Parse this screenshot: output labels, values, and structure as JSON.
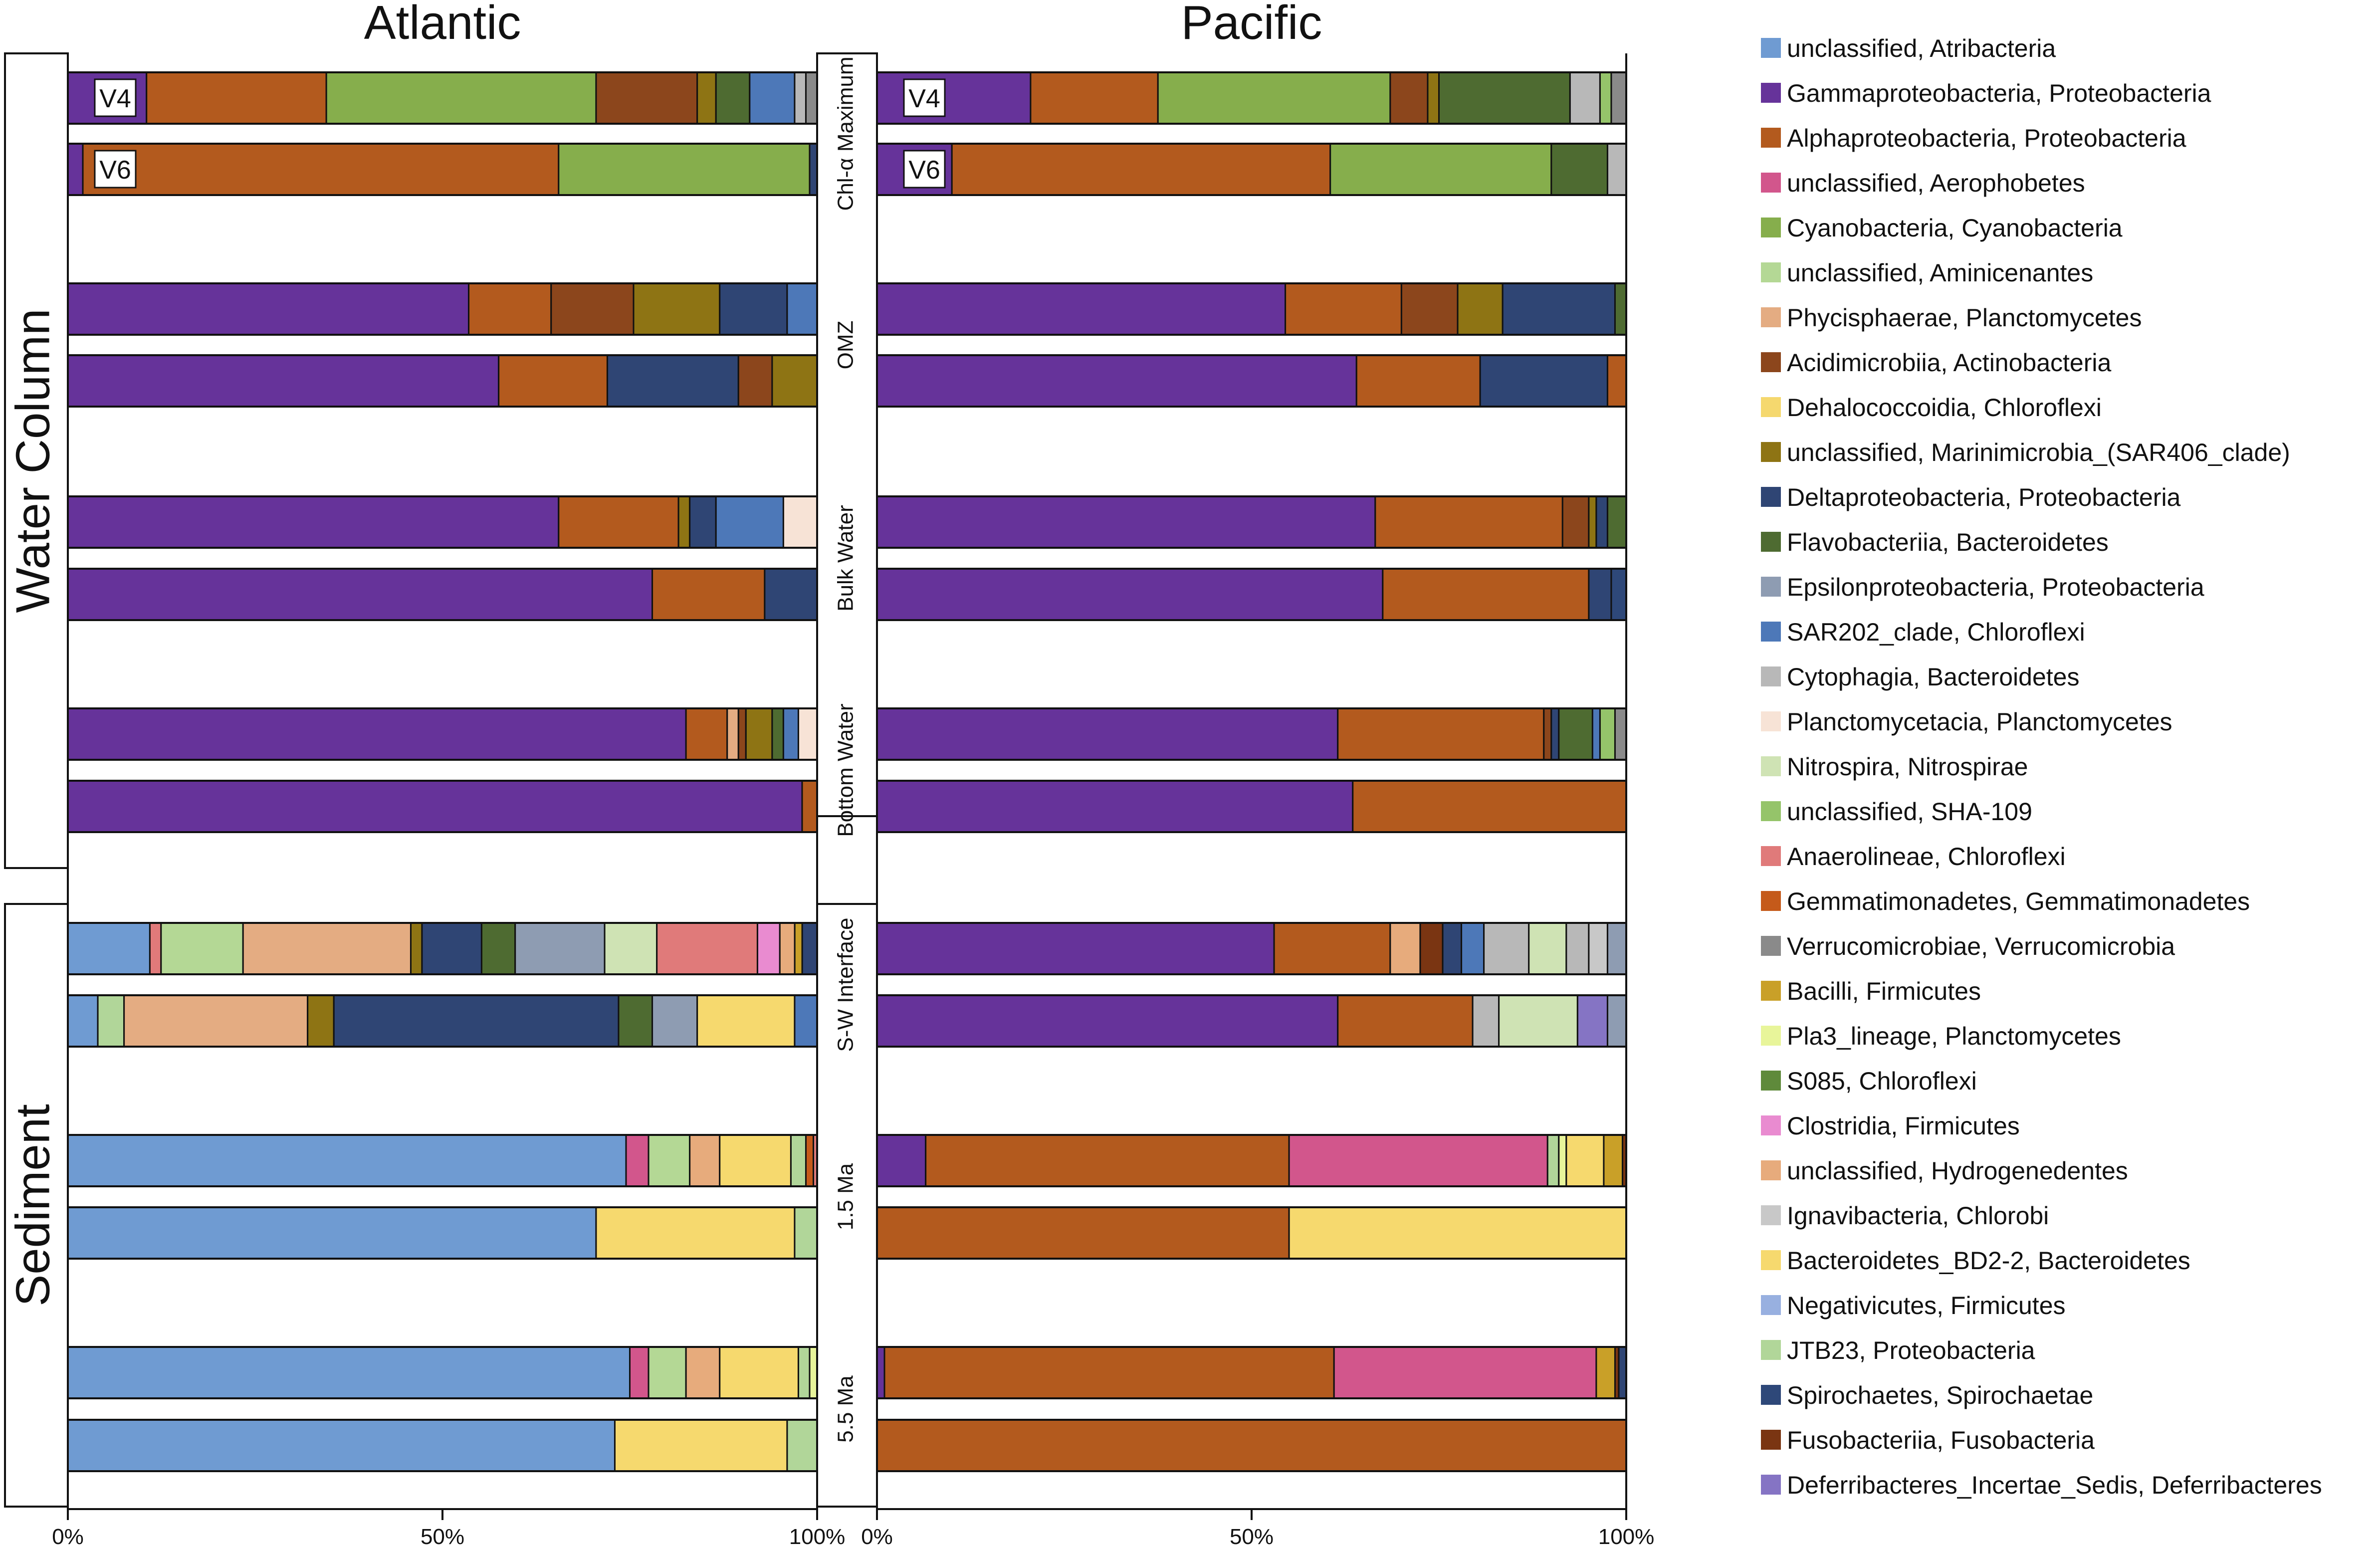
{
  "chart_data": {
    "type": "stacked-bar-horizontal",
    "panels": [
      "Atlantic",
      "Pacific"
    ],
    "groups": [
      {
        "label": "Water Column",
        "rows": [
          "Chl-α Maximum",
          "OMZ",
          "Bulk Water",
          "Bottom Water"
        ]
      },
      {
        "label": "Sediment",
        "rows": [
          "S-W Interface",
          "1.5 Ma",
          "5.5 Ma"
        ]
      }
    ],
    "primers": [
      "V4",
      "V6"
    ],
    "x_ticks": [
      "0%",
      "50%",
      "100%"
    ],
    "legend": [
      {
        "label": "unclassified, Atribacteria",
        "color": "#6f9bd2"
      },
      {
        "label": "Gammaproteobacteria, Proteobacteria",
        "color": "#66339a"
      },
      {
        "label": "Alphaproteobacteria, Proteobacteria",
        "color": "#b35a1e"
      },
      {
        "label": "unclassified, Aerophobetes",
        "color": "#d2568c"
      },
      {
        "label": "Cyanobacteria, Cyanobacteria",
        "color": "#86ae4c"
      },
      {
        "label": "unclassified, Aminicenantes",
        "color": "#b4d895"
      },
      {
        "label": "Phycisphaerae, Planctomycetes",
        "color": "#e4ac82"
      },
      {
        "label": "Acidimicrobiia, Actinobacteria",
        "color": "#8c461c"
      },
      {
        "label": "Dehalococcoidia, Chloroflexi",
        "color": "#f5d86e"
      },
      {
        "label": "unclassified, Marinimicrobia_(SAR406_clade)",
        "color": "#8e7414"
      },
      {
        "label": "Deltaproteobacteria, Proteobacteria",
        "color": "#2f4574"
      },
      {
        "label": "Flavobacteriia, Bacteroidetes",
        "color": "#4e6b31"
      },
      {
        "label": "Epsilonproteobacteria, Proteobacteria",
        "color": "#8e9cb2"
      },
      {
        "label": "SAR202_clade, Chloroflexi",
        "color": "#4d78b8"
      },
      {
        "label": "Cytophagia, Bacteroidetes",
        "color": "#b8b8b8"
      },
      {
        "label": "Planctomycetacia, Planctomycetes",
        "color": "#f7e3d6"
      },
      {
        "label": "Nitrospira, Nitrospirae",
        "color": "#cfe3b4"
      },
      {
        "label": "unclassified, SHA-109",
        "color": "#95c46a"
      },
      {
        "label": "Anaerolineae, Chloroflexi",
        "color": "#e07a7a"
      },
      {
        "label": "Gemmatimonadetes, Gemmatimonadetes",
        "color": "#c55a1a"
      },
      {
        "label": "Verrucomicrobiae, Verrucomicrobia",
        "color": "#8a8a8a"
      },
      {
        "label": "Bacilli, Firmicutes",
        "color": "#c9a028"
      },
      {
        "label": "Pla3_lineage, Planctomycetes",
        "color": "#e8f59a"
      },
      {
        "label": "S085, Chloroflexi",
        "color": "#5f8a3b"
      },
      {
        "label": "Clostridia, Firmicutes",
        "color": "#e98bd0"
      },
      {
        "label": "unclassified, Hydrogenedentes",
        "color": "#e7ab7c"
      },
      {
        "label": "Ignavibacteria, Chlorobi",
        "color": "#c8c8c8"
      },
      {
        "label": "Bacteroidetes_BD2-2, Bacteroidetes",
        "color": "#f6d96e"
      },
      {
        "label": "Negativicutes, Firmicutes",
        "color": "#98b0e0"
      },
      {
        "label": "JTB23, Proteobacteria",
        "color": "#b1d699"
      },
      {
        "label": "Spirochaetes, Spirochaetae",
        "color": "#2e4879"
      },
      {
        "label": "Fusobacteriia, Fusobacteria",
        "color": "#7a3512"
      },
      {
        "label": "Deferribacteres_Incertae_Sedis, Deferribacteres",
        "color": "#8574c4"
      }
    ],
    "bars": {
      "Atlantic": [
        [
          [
            "Gammaproteobacteria, Proteobacteria",
            10.5
          ],
          [
            "Alphaproteobacteria, Proteobacteria",
            24
          ],
          [
            "Cyanobacteria, Cyanobacteria",
            36
          ],
          [
            "Acidimicrobiia, Actinobacteria",
            13.5
          ],
          [
            "unclassified, Marinimicrobia_(SAR406_clade)",
            2.5
          ],
          [
            "Flavobacteriia, Bacteroidetes",
            4.5
          ],
          [
            "SAR202_clade, Chloroflexi",
            6
          ],
          [
            "Cytophagia, Bacteroidetes",
            1.5
          ],
          [
            "Verrucomicrobiae, Verrucomicrobia",
            1.5
          ]
        ],
        [
          [
            "Gammaproteobacteria, Proteobacteria",
            2
          ],
          [
            "Alphaproteobacteria, Proteobacteria",
            63.5
          ],
          [
            "Cyanobacteria, Cyanobacteria",
            33.5
          ],
          [
            "Deltaproteobacteria, Proteobacteria",
            1
          ]
        ],
        [
          [
            "Gammaproteobacteria, Proteobacteria",
            53.5
          ],
          [
            "Alphaproteobacteria, Proteobacteria",
            11
          ],
          [
            "Acidimicrobiia, Actinobacteria",
            11
          ],
          [
            "unclassified, Marinimicrobia_(SAR406_clade)",
            11.5
          ],
          [
            "Deltaproteobacteria, Proteobacteria",
            9
          ],
          [
            "SAR202_clade, Chloroflexi",
            4
          ]
        ],
        [
          [
            "Gammaproteobacteria, Proteobacteria",
            57.5
          ],
          [
            "Alphaproteobacteria, Proteobacteria",
            14.5
          ],
          [
            "Deltaproteobacteria, Proteobacteria",
            17.5
          ],
          [
            "Acidimicrobiia, Actinobacteria",
            4.5
          ],
          [
            "unclassified, Marinimicrobia_(SAR406_clade)",
            6
          ]
        ],
        [
          [
            "Gammaproteobacteria, Proteobacteria",
            65.5
          ],
          [
            "Alphaproteobacteria, Proteobacteria",
            16
          ],
          [
            "unclassified, Marinimicrobia_(SAR406_clade)",
            1.5
          ],
          [
            "Deltaproteobacteria, Proteobacteria",
            3.5
          ],
          [
            "SAR202_clade, Chloroflexi",
            9
          ],
          [
            "Planctomycetacia, Planctomycetes",
            4.5
          ]
        ],
        [
          [
            "Gammaproteobacteria, Proteobacteria",
            78
          ],
          [
            "Alphaproteobacteria, Proteobacteria",
            15
          ],
          [
            "Deltaproteobacteria, Proteobacteria",
            7
          ]
        ],
        [
          [
            "Gammaproteobacteria, Proteobacteria",
            82.5
          ],
          [
            "Alphaproteobacteria, Proteobacteria",
            5.5
          ],
          [
            "Phycisphaerae, Planctomycetes",
            1.5
          ],
          [
            "Acidimicrobiia, Actinobacteria",
            1
          ],
          [
            "unclassified, Marinimicrobia_(SAR406_clade)",
            3.5
          ],
          [
            "Flavobacteriia, Bacteroidetes",
            1.5
          ],
          [
            "SAR202_clade, Chloroflexi",
            2
          ],
          [
            "Planctomycetacia, Planctomycetes",
            2.5
          ]
        ],
        [
          [
            "Gammaproteobacteria, Proteobacteria",
            98
          ],
          [
            "Alphaproteobacteria, Proteobacteria",
            2
          ]
        ],
        [
          [
            "unclassified, Atribacteria",
            11
          ],
          [
            "Anaerolineae, Chloroflexi",
            1.5
          ],
          [
            "unclassified, Aminicenantes",
            11
          ],
          [
            "Phycisphaerae, Planctomycetes",
            22.5
          ],
          [
            "unclassified, Marinimicrobia_(SAR406_clade)",
            1.5
          ],
          [
            "Deltaproteobacteria, Proteobacteria",
            8
          ],
          [
            "Flavobacteriia, Bacteroidetes",
            4.5
          ],
          [
            "Epsilonproteobacteria, Proteobacteria",
            12
          ],
          [
            "Nitrospira, Nitrospirae",
            7
          ],
          [
            "Anaerolineae, Chloroflexi",
            13.5
          ],
          [
            "Clostridia, Firmicutes",
            3
          ],
          [
            "unclassified, Hydrogenedentes",
            2
          ],
          [
            "Bacilli, Firmicutes",
            1
          ],
          [
            "Deltaproteobacteria, Proteobacteria",
            2
          ]
        ],
        [
          [
            "unclassified, Atribacteria",
            4
          ],
          [
            "JTB23, Proteobacteria",
            3.5
          ],
          [
            "Phycisphaerae, Planctomycetes",
            24.5
          ],
          [
            "unclassified, Marinimicrobia_(SAR406_clade)",
            3.5
          ],
          [
            "Deltaproteobacteria, Proteobacteria",
            38
          ],
          [
            "Flavobacteriia, Bacteroidetes",
            4.5
          ],
          [
            "Epsilonproteobacteria, Proteobacteria",
            6
          ],
          [
            "Bacteroidetes_BD2-2, Bacteroidetes",
            13
          ],
          [
            "SAR202_clade, Chloroflexi",
            3
          ]
        ],
        [
          [
            "unclassified, Atribacteria",
            74.5
          ],
          [
            "unclassified, Aerophobetes",
            3
          ],
          [
            "unclassified, Aminicenantes",
            5.5
          ],
          [
            "unclassified, Hydrogenedentes",
            4
          ],
          [
            "Bacteroidetes_BD2-2, Bacteroidetes",
            9.5
          ],
          [
            "JTB23, Proteobacteria",
            2
          ],
          [
            "Gemmatimonadetes, Gemmatimonadetes",
            1
          ],
          [
            "Anaerolineae, Chloroflexi",
            0.5
          ]
        ],
        [
          [
            "unclassified, Atribacteria",
            70.5
          ],
          [
            "Bacteroidetes_BD2-2, Bacteroidetes",
            26.5
          ],
          [
            "JTB23, Proteobacteria",
            3
          ]
        ],
        [
          [
            "unclassified, Atribacteria",
            75
          ],
          [
            "unclassified, Aerophobetes",
            2.5
          ],
          [
            "unclassified, Aminicenantes",
            5
          ],
          [
            "unclassified, Hydrogenedentes",
            4.5
          ],
          [
            "Bacteroidetes_BD2-2, Bacteroidetes",
            10.5
          ],
          [
            "JTB23, Proteobacteria",
            1.5
          ],
          [
            "Pla3_lineage, Planctomycetes",
            1
          ]
        ],
        [
          [
            "unclassified, Atribacteria",
            73
          ],
          [
            "Bacteroidetes_BD2-2, Bacteroidetes",
            23
          ],
          [
            "JTB23, Proteobacteria",
            4
          ]
        ]
      ],
      "Pacific": [
        [
          [
            "Gammaproteobacteria, Proteobacteria",
            20.5
          ],
          [
            "Alphaproteobacteria, Proteobacteria",
            17
          ],
          [
            "Cyanobacteria, Cyanobacteria",
            31
          ],
          [
            "Acidimicrobiia, Actinobacteria",
            5
          ],
          [
            "unclassified, Marinimicrobia_(SAR406_clade)",
            1.5
          ],
          [
            "Flavobacteriia, Bacteroidetes",
            17.5
          ],
          [
            "Cytophagia, Bacteroidetes",
            4
          ],
          [
            "unclassified, SHA-109",
            1.5
          ],
          [
            "Verrucomicrobiae, Verrucomicrobia",
            2
          ]
        ],
        [
          [
            "Gammaproteobacteria, Proteobacteria",
            10
          ],
          [
            "Alphaproteobacteria, Proteobacteria",
            50.5
          ],
          [
            "Cyanobacteria, Cyanobacteria",
            29.5
          ],
          [
            "Flavobacteriia, Bacteroidetes",
            7.5
          ],
          [
            "Cytophagia, Bacteroidetes",
            2.5
          ]
        ],
        [
          [
            "Gammaproteobacteria, Proteobacteria",
            54.5
          ],
          [
            "Alphaproteobacteria, Proteobacteria",
            15.5
          ],
          [
            "Acidimicrobiia, Actinobacteria",
            7.5
          ],
          [
            "unclassified, Marinimicrobia_(SAR406_clade)",
            6
          ],
          [
            "Deltaproteobacteria, Proteobacteria",
            15
          ],
          [
            "Flavobacteriia, Bacteroidetes",
            1.5
          ]
        ],
        [
          [
            "Gammaproteobacteria, Proteobacteria",
            64
          ],
          [
            "Alphaproteobacteria, Proteobacteria",
            16.5
          ],
          [
            "Deltaproteobacteria, Proteobacteria",
            17
          ],
          [
            "Alphaproteobacteria, Proteobacteria",
            2.5
          ]
        ],
        [
          [
            "Gammaproteobacteria, Proteobacteria",
            66.5
          ],
          [
            "Alphaproteobacteria, Proteobacteria",
            25
          ],
          [
            "Acidimicrobiia, Actinobacteria",
            3.5
          ],
          [
            "unclassified, Marinimicrobia_(SAR406_clade)",
            1
          ],
          [
            "Deltaproteobacteria, Proteobacteria",
            1.5
          ],
          [
            "Flavobacteriia, Bacteroidetes",
            2.5
          ]
        ],
        [
          [
            "Gammaproteobacteria, Proteobacteria",
            67.5
          ],
          [
            "Alphaproteobacteria, Proteobacteria",
            27.5
          ],
          [
            "Deltaproteobacteria, Proteobacteria",
            3
          ],
          [
            "Spirochaetes, Spirochaetae",
            2
          ]
        ],
        [
          [
            "Gammaproteobacteria, Proteobacteria",
            61.5
          ],
          [
            "Alphaproteobacteria, Proteobacteria",
            27.5
          ],
          [
            "Acidimicrobiia, Actinobacteria",
            1
          ],
          [
            "Deltaproteobacteria, Proteobacteria",
            1
          ],
          [
            "Flavobacteriia, Bacteroidetes",
            4.5
          ],
          [
            "SAR202_clade, Chloroflexi",
            1
          ],
          [
            "unclassified, SHA-109",
            2
          ],
          [
            "Verrucomicrobiae, Verrucomicrobia",
            1.5
          ]
        ],
        [
          [
            "Gammaproteobacteria, Proteobacteria",
            63.5
          ],
          [
            "Alphaproteobacteria, Proteobacteria",
            36.5
          ]
        ],
        [
          [
            "Gammaproteobacteria, Proteobacteria",
            53
          ],
          [
            "Alphaproteobacteria, Proteobacteria",
            15.5
          ],
          [
            "unclassified, Hydrogenedentes",
            4
          ],
          [
            "Fusobacteriia, Fusobacteria",
            3
          ],
          [
            "Deltaproteobacteria, Proteobacteria",
            2.5
          ],
          [
            "SAR202_clade, Chloroflexi",
            3
          ],
          [
            "Cytophagia, Bacteroidetes",
            6
          ],
          [
            "Nitrospira, Nitrospirae",
            5
          ],
          [
            "Cytophagia, Bacteroidetes",
            3
          ],
          [
            "Ignavibacteria, Chlorobi",
            2.5
          ],
          [
            "Epsilonproteobacteria, Proteobacteria",
            2.5
          ]
        ],
        [
          [
            "Gammaproteobacteria, Proteobacteria",
            61.5
          ],
          [
            "Alphaproteobacteria, Proteobacteria",
            18
          ],
          [
            "Cytophagia, Bacteroidetes",
            3.5
          ],
          [
            "Nitrospira, Nitrospirae",
            10.5
          ],
          [
            "Deferribacteres_Incertae_Sedis, Deferribacteres",
            4
          ],
          [
            "Epsilonproteobacteria, Proteobacteria",
            2.5
          ]
        ],
        [
          [
            "Gammaproteobacteria, Proteobacteria",
            6.5
          ],
          [
            "Alphaproteobacteria, Proteobacteria",
            48.5
          ],
          [
            "unclassified, Aerophobetes",
            34.5
          ],
          [
            "JTB23, Proteobacteria",
            1.5
          ],
          [
            "Pla3_lineage, Planctomycetes",
            1
          ],
          [
            "Bacteroidetes_BD2-2, Bacteroidetes",
            5
          ],
          [
            "Bacilli, Firmicutes",
            2.5
          ],
          [
            "Fusobacteriia, Fusobacteria",
            0.5
          ]
        ],
        [
          [
            "Alphaproteobacteria, Proteobacteria",
            55
          ],
          [
            "Bacteroidetes_BD2-2, Bacteroidetes",
            45
          ]
        ],
        [
          [
            "Gammaproteobacteria, Proteobacteria",
            1
          ],
          [
            "Alphaproteobacteria, Proteobacteria",
            60
          ],
          [
            "unclassified, Aerophobetes",
            35
          ],
          [
            "Bacilli, Firmicutes",
            2.5
          ],
          [
            "Fusobacteriia, Fusobacteria",
            0.5
          ],
          [
            "Deltaproteobacteria, Proteobacteria",
            1
          ]
        ],
        [
          [
            "Alphaproteobacteria, Proteobacteria",
            100
          ]
        ]
      ]
    }
  }
}
